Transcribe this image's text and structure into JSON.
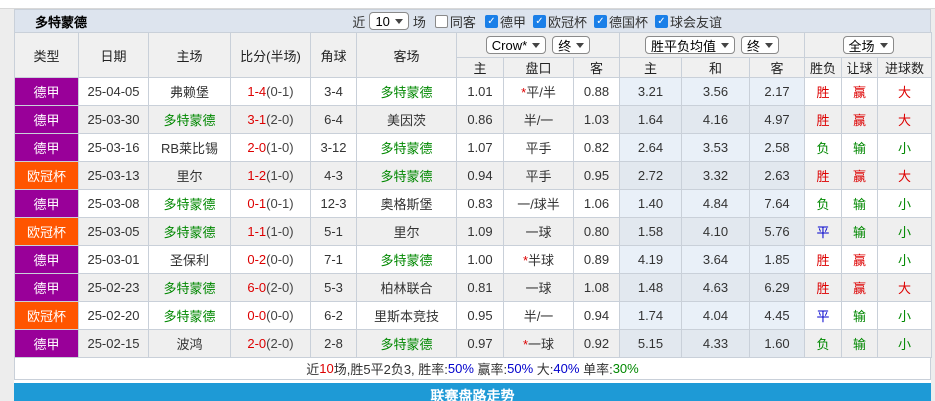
{
  "title": "多特蒙德",
  "toolbar": {
    "near_label": "近",
    "matches_count": "10",
    "matches_label": "场",
    "same_venue": {
      "label": "同客",
      "checked": false
    },
    "leagues": [
      {
        "label": "德甲",
        "checked": true
      },
      {
        "label": "欧冠杯",
        "checked": true
      },
      {
        "label": "德国杯",
        "checked": true
      },
      {
        "label": "球会友谊",
        "checked": true
      }
    ]
  },
  "filters": {
    "odds_company": "Crow*",
    "odds_time": "终",
    "avg_type": "胜平负均值",
    "avg_time": "终",
    "scope": "全场"
  },
  "columns": {
    "type": "类型",
    "date": "日期",
    "home": "主场",
    "score": "比分(半场)",
    "corner": "角球",
    "away": "客场",
    "odds_home": "主",
    "handicap": "盘口",
    "odds_away": "客",
    "avg_home": "主",
    "avg_draw": "和",
    "avg_away": "客",
    "result": "胜负",
    "handicap_result": "让球",
    "goals": "进球数"
  },
  "rows": [
    {
      "type": "德甲",
      "type_color": "purple",
      "date": "25-04-05",
      "home": "弗赖堡",
      "home_hl": false,
      "score": "1-4",
      "half": "(0-1)",
      "corner": "3-4",
      "away": "多特蒙德",
      "away_hl": true,
      "odds_home": "1.01",
      "star": "*",
      "handicap": "平/半",
      "odds_away": "0.88",
      "avg_home": "3.21",
      "avg_draw": "3.56",
      "avg_away": "2.17",
      "result": {
        "t": "胜",
        "c": "red"
      },
      "hresult": {
        "t": "赢",
        "c": "red"
      },
      "goals": {
        "t": "大",
        "c": "red"
      }
    },
    {
      "type": "德甲",
      "type_color": "purple",
      "date": "25-03-30",
      "home": "多特蒙德",
      "home_hl": true,
      "score": "3-1",
      "half": "(2-0)",
      "corner": "6-4",
      "away": "美因茨",
      "away_hl": false,
      "odds_home": "0.86",
      "star": "",
      "handicap": "半/一",
      "odds_away": "1.03",
      "avg_home": "1.64",
      "avg_draw": "4.16",
      "avg_away": "4.97",
      "result": {
        "t": "胜",
        "c": "red"
      },
      "hresult": {
        "t": "赢",
        "c": "red"
      },
      "goals": {
        "t": "大",
        "c": "red"
      }
    },
    {
      "type": "德甲",
      "type_color": "purple",
      "date": "25-03-16",
      "home": "RB莱比锡",
      "home_hl": false,
      "score": "2-0",
      "half": "(1-0)",
      "corner": "3-12",
      "away": "多特蒙德",
      "away_hl": true,
      "odds_home": "1.07",
      "star": "",
      "handicap": "平手",
      "odds_away": "0.82",
      "avg_home": "2.64",
      "avg_draw": "3.53",
      "avg_away": "2.58",
      "result": {
        "t": "负",
        "c": "green"
      },
      "hresult": {
        "t": "输",
        "c": "green"
      },
      "goals": {
        "t": "小",
        "c": "green"
      }
    },
    {
      "type": "欧冠杯",
      "type_color": "orange",
      "date": "25-03-13",
      "home": "里尔",
      "home_hl": false,
      "score": "1-2",
      "half": "(1-0)",
      "corner": "4-3",
      "away": "多特蒙德",
      "away_hl": true,
      "odds_home": "0.94",
      "star": "",
      "handicap": "平手",
      "odds_away": "0.95",
      "avg_home": "2.72",
      "avg_draw": "3.32",
      "avg_away": "2.63",
      "result": {
        "t": "胜",
        "c": "red"
      },
      "hresult": {
        "t": "赢",
        "c": "red"
      },
      "goals": {
        "t": "大",
        "c": "red"
      }
    },
    {
      "type": "德甲",
      "type_color": "purple",
      "date": "25-03-08",
      "home": "多特蒙德",
      "home_hl": true,
      "score": "0-1",
      "half": "(0-1)",
      "corner": "12-3",
      "away": "奥格斯堡",
      "away_hl": false,
      "odds_home": "0.83",
      "star": "",
      "handicap": "一/球半",
      "odds_away": "1.06",
      "avg_home": "1.40",
      "avg_draw": "4.84",
      "avg_away": "7.64",
      "result": {
        "t": "负",
        "c": "green"
      },
      "hresult": {
        "t": "输",
        "c": "green"
      },
      "goals": {
        "t": "小",
        "c": "green"
      }
    },
    {
      "type": "欧冠杯",
      "type_color": "orange",
      "date": "25-03-05",
      "home": "多特蒙德",
      "home_hl": true,
      "score": "1-1",
      "half": "(1-0)",
      "corner": "5-1",
      "away": "里尔",
      "away_hl": false,
      "odds_home": "1.09",
      "star": "",
      "handicap": "一球",
      "odds_away": "0.80",
      "avg_home": "1.58",
      "avg_draw": "4.10",
      "avg_away": "5.76",
      "result": {
        "t": "平",
        "c": "blue"
      },
      "hresult": {
        "t": "输",
        "c": "green"
      },
      "goals": {
        "t": "小",
        "c": "green"
      }
    },
    {
      "type": "德甲",
      "type_color": "purple",
      "date": "25-03-01",
      "home": "圣保利",
      "home_hl": false,
      "score": "0-2",
      "half": "(0-0)",
      "corner": "7-1",
      "away": "多特蒙德",
      "away_hl": true,
      "odds_home": "1.00",
      "star": "*",
      "handicap": "半球",
      "odds_away": "0.89",
      "avg_home": "4.19",
      "avg_draw": "3.64",
      "avg_away": "1.85",
      "result": {
        "t": "胜",
        "c": "red"
      },
      "hresult": {
        "t": "赢",
        "c": "red"
      },
      "goals": {
        "t": "小",
        "c": "green"
      }
    },
    {
      "type": "德甲",
      "type_color": "purple",
      "date": "25-02-23",
      "home": "多特蒙德",
      "home_hl": true,
      "score": "6-0",
      "half": "(2-0)",
      "corner": "5-3",
      "away": "柏林联合",
      "away_hl": false,
      "odds_home": "0.81",
      "star": "",
      "handicap": "一球",
      "odds_away": "1.08",
      "avg_home": "1.48",
      "avg_draw": "4.63",
      "avg_away": "6.29",
      "result": {
        "t": "胜",
        "c": "red"
      },
      "hresult": {
        "t": "赢",
        "c": "red"
      },
      "goals": {
        "t": "大",
        "c": "red"
      }
    },
    {
      "type": "欧冠杯",
      "type_color": "orange",
      "date": "25-02-20",
      "home": "多特蒙德",
      "home_hl": true,
      "score": "0-0",
      "half": "(0-0)",
      "corner": "6-2",
      "away": "里斯本竞技",
      "away_hl": false,
      "odds_home": "0.95",
      "star": "",
      "handicap": "半/一",
      "odds_away": "0.94",
      "avg_home": "1.74",
      "avg_draw": "4.04",
      "avg_away": "4.45",
      "result": {
        "t": "平",
        "c": "blue"
      },
      "hresult": {
        "t": "输",
        "c": "green"
      },
      "goals": {
        "t": "小",
        "c": "green"
      }
    },
    {
      "type": "德甲",
      "type_color": "purple",
      "date": "25-02-15",
      "home": "波鸿",
      "home_hl": false,
      "score": "2-0",
      "half": "(2-0)",
      "corner": "2-8",
      "away": "多特蒙德",
      "away_hl": true,
      "odds_home": "0.97",
      "star": "*",
      "handicap": "一球",
      "odds_away": "0.92",
      "avg_home": "5.15",
      "avg_draw": "4.33",
      "avg_away": "1.60",
      "result": {
        "t": "负",
        "c": "green"
      },
      "hresult": {
        "t": "输",
        "c": "green"
      },
      "goals": {
        "t": "小",
        "c": "green"
      }
    }
  ],
  "summary": {
    "segments": [
      {
        "t": "近",
        "c": "dark"
      },
      {
        "t": "10",
        "c": "red"
      },
      {
        "t": "场,胜5平2负3, 胜率:",
        "c": "dark"
      },
      {
        "t": "50%",
        "c": "blue"
      },
      {
        "t": " 赢率:",
        "c": "dark"
      },
      {
        "t": "50%",
        "c": "blue"
      },
      {
        "t": " 大:",
        "c": "dark"
      },
      {
        "t": "40%",
        "c": "blue"
      },
      {
        "t": " 单率:",
        "c": "dark"
      },
      {
        "t": "30%",
        "c": "green"
      }
    ]
  },
  "footer_bar": "联赛盘路走势",
  "colors": {
    "badge_purple": "#990099",
    "badge_orange": "#ff5500",
    "team_highlight": "#008800",
    "win_red": "#dd0000",
    "draw_blue": "#0000cc",
    "lose_green": "#008800",
    "bar_blue": "#1e9ad6",
    "titlebar_bg": "#dde4ee",
    "checkbox_blue": "#1a7fe8"
  }
}
